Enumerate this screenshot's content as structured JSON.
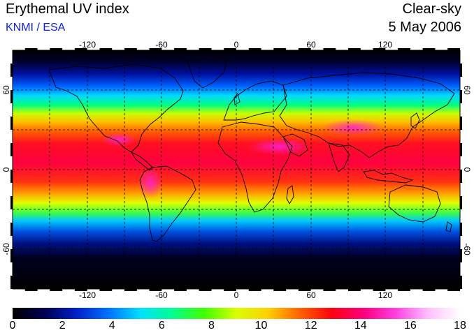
{
  "header": {
    "title": "Erythemal UV index",
    "subtitle": "KNMI / ESA",
    "condition": "Clear-sky",
    "date": "5 May 2006"
  },
  "map": {
    "lon_labels": [
      "-120",
      "-60",
      "0",
      "60",
      "120"
    ],
    "lat_labels": [
      "60",
      "0",
      "-60"
    ],
    "lon_range": [
      -180,
      180
    ],
    "lat_range": [
      -90,
      90
    ]
  },
  "colorbar": {
    "ticks": [
      "0",
      "2",
      "4",
      "6",
      "8",
      "10",
      "12",
      "14",
      "16",
      "18"
    ],
    "range": [
      0,
      18
    ],
    "stops": [
      "#000000",
      "#000050",
      "#0020c8",
      "#0070ff",
      "#00e0ff",
      "#00ff90",
      "#40ff00",
      "#d8ff00",
      "#ffd000",
      "#ff6000",
      "#ff0010",
      "#ff0080",
      "#ff40e0",
      "#ffc0ff",
      "#ffffff"
    ]
  }
}
